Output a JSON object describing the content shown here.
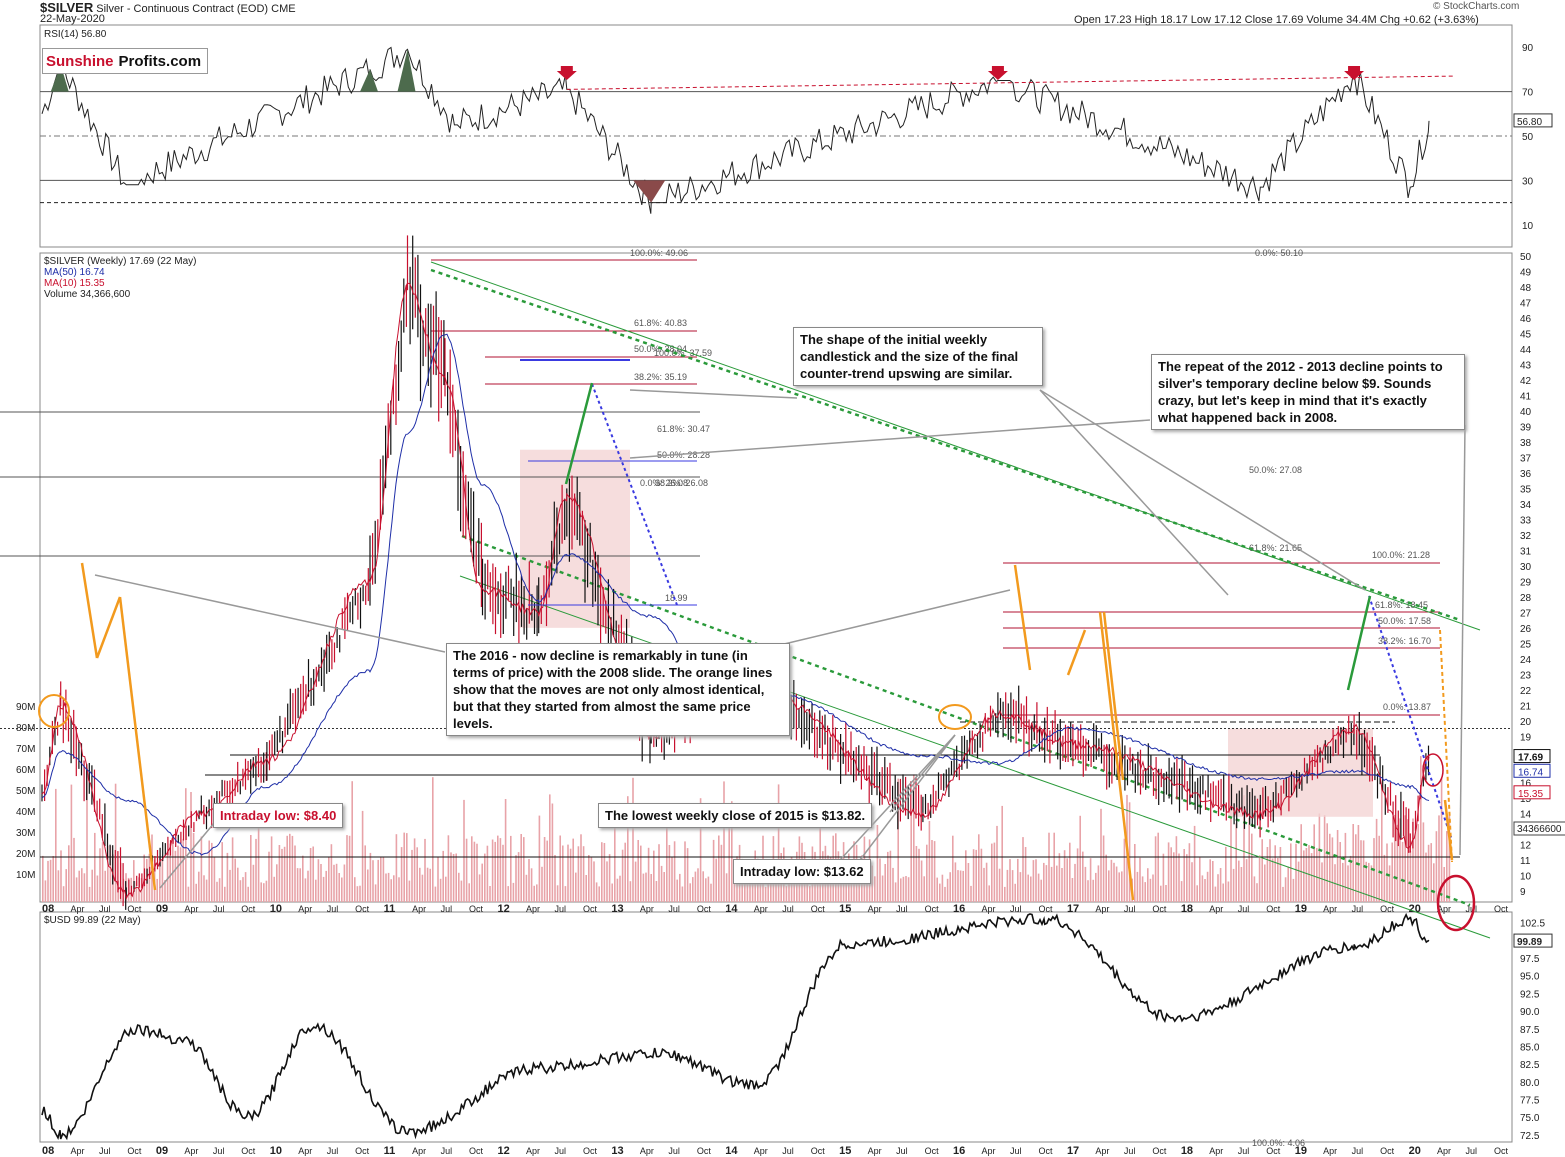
{
  "header": {
    "symbol": "$SILVER",
    "description": "Silver - Continuous Contract (EOD)",
    "exchange": "CME",
    "date": "22-May-2020",
    "watermark": "© StockCharts.com",
    "ohlc": "Open 17.23  High 18.17  Low 17.12  Close 17.69  Volume 34.4M  Chg +0.62 (+3.63%)"
  },
  "logo": {
    "part1": "Sunshine",
    "part2": "Profits.com"
  },
  "rsi_panel": {
    "label": "RSI(14) 56.80",
    "last_value": "56.80",
    "ticks": [
      "90",
      "70",
      "50",
      "30",
      "10"
    ],
    "overbought": 70,
    "oversold": 30
  },
  "price_panel": {
    "legend": [
      {
        "text": "$SILVER (Weekly) 17.69 (22 May)",
        "color": "#222222"
      },
      {
        "text": "MA(50) 16.74",
        "color": "#1f2fa8"
      },
      {
        "text": "MA(10) 15.35",
        "color": "#c8102e"
      },
      {
        "text": "Volume 34,366,600",
        "color": "#444444"
      }
    ],
    "last_labels": [
      "17.69",
      "16.74",
      "15.35"
    ],
    "volume_last": "34366600",
    "volume_ticks": [
      "90M",
      "80M",
      "70M",
      "60M",
      "50M",
      "40M",
      "30M",
      "20M",
      "10M"
    ],
    "fib_labels": [
      "100.0%: 49.06",
      "61.8%: 40.83",
      "50.0%: 38.04",
      "100.0%: 37.59",
      "38.2%: 35.19",
      "61.8%: 30.47",
      "50.0%: 28.28",
      "0.0%: 26.08",
      "38.2%: 26.08",
      "18.99",
      "0.0%: 50.10",
      "50.0%: 27.08",
      "61.8%: 21.65",
      "100.0%: 21.28",
      "61.8%: 18.45",
      "50.0%: 17.58",
      "38.2%: 16.70",
      "0.0%: 13.87",
      "100.0%: 4.06"
    ]
  },
  "usd_panel": {
    "label": "$USD 99.89 (22 May)",
    "last_value": "99.89",
    "ticks": [
      "102.5",
      "100.0",
      "97.5",
      "95.0",
      "92.5",
      "90.0",
      "87.5",
      "85.0",
      "82.5",
      "80.0",
      "77.5",
      "75.0",
      "72.5"
    ]
  },
  "annotations": {
    "shape_note": "The shape of the initial weekly candlestick and the size of the final counter-trend upswing are similar.",
    "repeat_note": "The repeat of the 2012 - 2013 decline points to silver's temporary decline below $9. Sounds crazy, but let's keep in mind that it's exactly what happened back in 2008.",
    "decline_note": "The 2016 - now decline is remarkably in tune (in terms of price) with the 2008 slide. The orange lines show that the moves are not only almost identical, but that they started from almost the same price levels.",
    "intraday_low_2008": "Intraday low: $8.40",
    "lowest_close_2015": "The lowest weekly close of 2015 is $13.82.",
    "intraday_low_2015": "Intraday low: $13.62"
  },
  "colors": {
    "rsi_line": "#222222",
    "ma50": "#1f2fa8",
    "ma10": "#c8102e",
    "volume": "#e8a3a8",
    "trend_green": "#2a9a3a",
    "orange": "#f29a1e",
    "fill_pink": "#f4d5d5",
    "overbought_fill": "#4d6b4d",
    "oversold_fill": "#8a4a4a",
    "arrow": "#c8102e"
  },
  "chart_data": [
    {
      "type": "line",
      "name": "RSI(14)",
      "y_ticks": [
        90,
        70,
        50,
        30,
        10
      ],
      "ylim": [
        0,
        100
      ],
      "last": 56.8,
      "key_points": [
        {
          "x": "2008-01",
          "y": 60
        },
        {
          "x": "2008-03",
          "y": 82
        },
        {
          "x": "2008-10",
          "y": 28
        },
        {
          "x": "2010-12",
          "y": 80
        },
        {
          "x": "2011-04",
          "y": 89
        },
        {
          "x": "2011-09",
          "y": 55
        },
        {
          "x": "2012-09",
          "y": 71
        },
        {
          "x": "2013-06",
          "y": 20
        },
        {
          "x": "2016-07",
          "y": 75
        },
        {
          "x": "2018-11",
          "y": 27
        },
        {
          "x": "2019-09",
          "y": 78
        },
        {
          "x": "2020-03",
          "y": 27
        },
        {
          "x": "2020-05",
          "y": 56.8
        }
      ]
    },
    {
      "type": "line",
      "name": "$SILVER (Weekly)",
      "y_ticks": [
        9,
        10,
        11,
        12,
        13,
        14,
        15,
        16,
        17,
        18,
        19,
        20,
        21,
        22,
        23,
        24,
        25,
        26,
        27,
        28,
        29,
        30,
        31,
        32,
        33,
        34,
        35,
        36,
        37,
        38,
        39,
        40,
        41,
        42,
        43,
        44,
        45,
        46,
        47,
        48,
        49,
        50
      ],
      "x_ticks": [
        "08",
        "Apr",
        "Jul",
        "Oct",
        "09",
        "Apr",
        "Jul",
        "Oct",
        "10",
        "Apr",
        "Jul",
        "Oct",
        "11",
        "Apr",
        "Jul",
        "Oct",
        "12",
        "Apr",
        "Jul",
        "Oct",
        "13",
        "Apr",
        "Jul",
        "Oct",
        "14",
        "Apr",
        "Jul",
        "Oct",
        "15",
        "Apr",
        "Jul",
        "Oct",
        "16",
        "Apr",
        "Jul",
        "Oct",
        "17",
        "Apr",
        "Jul",
        "Oct",
        "18",
        "Apr",
        "Jul",
        "Oct",
        "19",
        "Apr",
        "Jul",
        "Oct",
        "20",
        "Apr",
        "Jul",
        "Oct"
      ],
      "key_points": [
        {
          "x": "2008-01",
          "y": 15.0
        },
        {
          "x": "2008-03",
          "y": 21.0
        },
        {
          "x": "2008-10",
          "y": 8.8
        },
        {
          "x": "2009-06",
          "y": 14.0
        },
        {
          "x": "2010-01",
          "y": 17.5
        },
        {
          "x": "2010-12",
          "y": 29.0
        },
        {
          "x": "2011-04",
          "y": 48.0
        },
        {
          "x": "2011-08",
          "y": 42.0
        },
        {
          "x": "2011-12",
          "y": 28.5
        },
        {
          "x": "2012-06",
          "y": 27.0
        },
        {
          "x": "2012-09",
          "y": 34.5
        },
        {
          "x": "2013-06",
          "y": 19.0
        },
        {
          "x": "2014-02",
          "y": 22.0
        },
        {
          "x": "2014-07",
          "y": 21.5
        },
        {
          "x": "2015-11",
          "y": 14.0
        },
        {
          "x": "2016-07",
          "y": 20.5
        },
        {
          "x": "2017-03",
          "y": 18.5
        },
        {
          "x": "2018-11",
          "y": 14.0
        },
        {
          "x": "2019-09",
          "y": 19.5
        },
        {
          "x": "2020-03",
          "y": 12.0
        },
        {
          "x": "2020-05",
          "y": 17.69
        }
      ]
    },
    {
      "type": "line",
      "name": "$USD",
      "y_ticks": [
        102.5,
        100.0,
        97.5,
        95.0,
        92.5,
        90.0,
        87.5,
        85.0,
        82.5,
        80.0,
        77.5,
        75.0,
        72.5
      ],
      "ylim": [
        71.5,
        104
      ],
      "last": 99.89,
      "key_points": [
        {
          "x": "2008-01",
          "y": 76
        },
        {
          "x": "2008-03",
          "y": 72.5
        },
        {
          "x": "2008-11",
          "y": 87.5
        },
        {
          "x": "2009-04",
          "y": 86
        },
        {
          "x": "2009-11",
          "y": 75
        },
        {
          "x": "2010-06",
          "y": 88
        },
        {
          "x": "2011-04",
          "y": 73
        },
        {
          "x": "2012-06",
          "y": 82
        },
        {
          "x": "2013-07",
          "y": 84
        },
        {
          "x": "2014-05",
          "y": 79.5
        },
        {
          "x": "2015-03",
          "y": 99.5
        },
        {
          "x": "2016-12",
          "y": 103
        },
        {
          "x": "2018-02",
          "y": 89
        },
        {
          "x": "2019-09",
          "y": 99
        },
        {
          "x": "2020-03",
          "y": 103
        },
        {
          "x": "2020-05",
          "y": 99.89
        }
      ]
    }
  ]
}
